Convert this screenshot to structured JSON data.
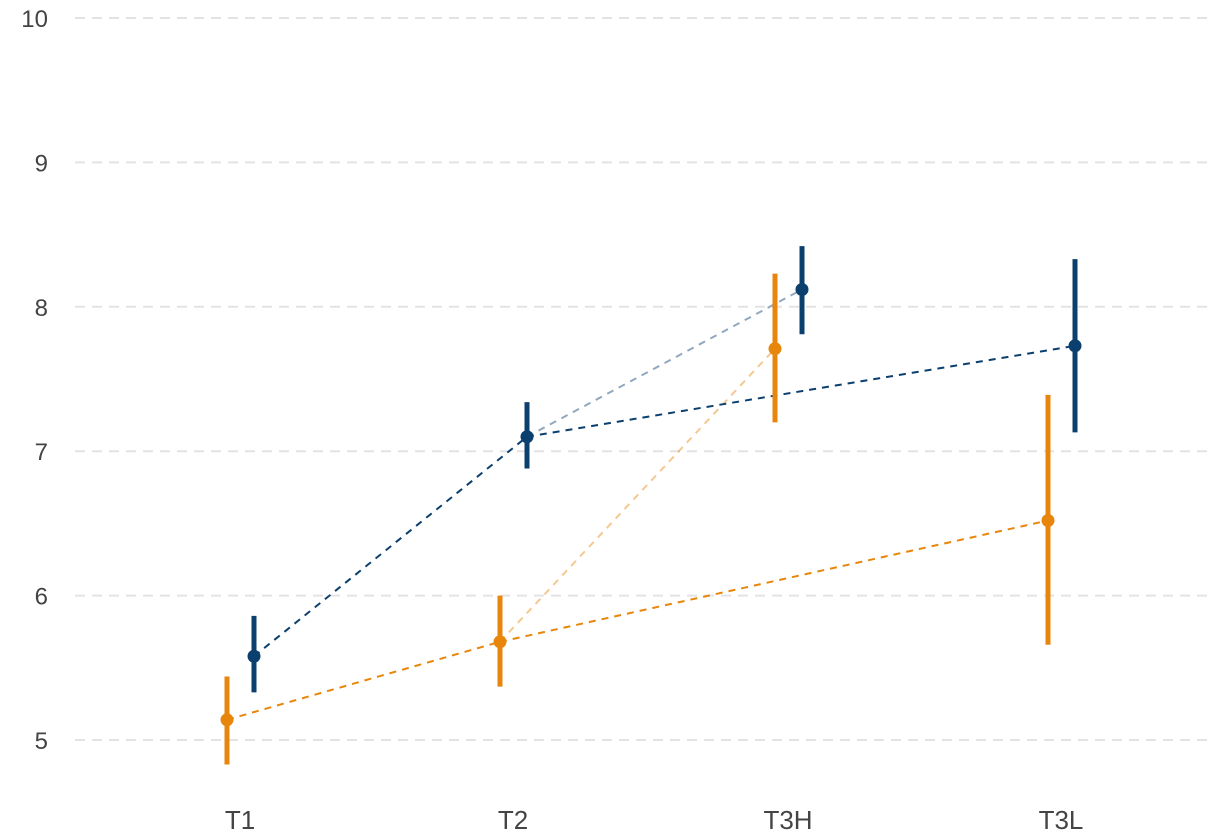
{
  "chart_data": {
    "type": "scatter",
    "title": "",
    "xlabel": "",
    "ylabel": "",
    "categories": [
      "T1",
      "T2",
      "T3H",
      "T3L"
    ],
    "yticks": [
      "5",
      "6",
      "7",
      "8",
      "9",
      "10"
    ],
    "ylim": [
      4.8,
      10
    ],
    "grid": "horizontal-dashed",
    "series": [
      {
        "color": "#e8860c",
        "points": [
          {
            "category": "T1",
            "mean": 5.14,
            "low": 4.83,
            "high": 5.44
          },
          {
            "category": "T2",
            "mean": 5.68,
            "low": 5.37,
            "high": 6.0
          },
          {
            "category": "T3H",
            "mean": 7.71,
            "low": 7.2,
            "high": 8.23
          },
          {
            "category": "T3L",
            "mean": 6.52,
            "low": 5.66,
            "high": 7.39
          }
        ]
      },
      {
        "color": "#0b3f6e",
        "points": [
          {
            "category": "T1",
            "mean": 5.58,
            "low": 5.33,
            "high": 5.86
          },
          {
            "category": "T2",
            "mean": 7.1,
            "low": 6.88,
            "high": 7.34
          },
          {
            "category": "T3H",
            "mean": 8.12,
            "low": 7.81,
            "high": 8.42
          },
          {
            "category": "T3L",
            "mean": 7.73,
            "low": 7.13,
            "high": 8.33
          }
        ]
      }
    ],
    "connections": [
      {
        "from": "T1",
        "to": "T2",
        "opacity": 1.0
      },
      {
        "from": "T2",
        "to": "T3L",
        "opacity": 1.0
      },
      {
        "from": "T2",
        "to": "T3H",
        "opacity": 0.45
      }
    ]
  }
}
